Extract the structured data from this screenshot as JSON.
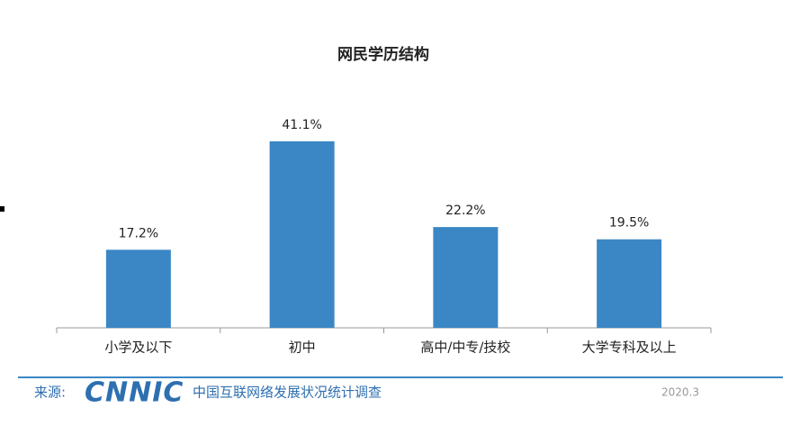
{
  "chart_data": {
    "type": "bar",
    "title": "网民学历结构",
    "categories": [
      "小学及以下",
      "初中",
      "高中/中专/技校",
      "大学专科及以上"
    ],
    "values": [
      17.2,
      41.1,
      22.2,
      19.5
    ],
    "value_labels": [
      "17.2%",
      "41.1%",
      "22.2%",
      "19.5%"
    ],
    "color": "#3b87c5"
  },
  "footer": {
    "source_label": "来源:",
    "logo": "CNNIC",
    "source": "中国互联网络发展状况统计调查",
    "date": "2020.3"
  }
}
